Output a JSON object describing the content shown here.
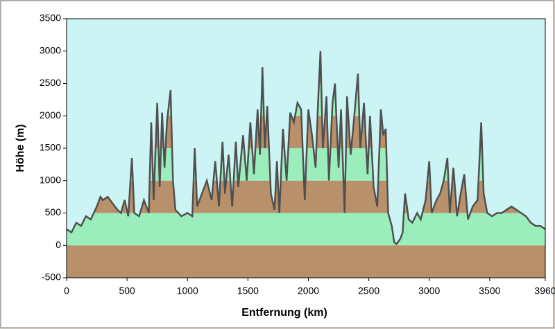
{
  "chart_data": {
    "type": "area",
    "xlabel": "Entfernung  (km)",
    "ylabel": "Höhe (m)",
    "x": [
      0,
      40,
      80,
      120,
      160,
      200,
      250,
      280,
      300,
      340,
      380,
      420,
      450,
      480,
      510,
      540,
      560,
      600,
      640,
      680,
      700,
      720,
      750,
      770,
      790,
      810,
      830,
      860,
      880,
      900,
      950,
      1000,
      1040,
      1060,
      1080,
      1120,
      1160,
      1200,
      1230,
      1260,
      1290,
      1310,
      1340,
      1370,
      1400,
      1420,
      1460,
      1490,
      1520,
      1550,
      1580,
      1600,
      1620,
      1640,
      1660,
      1690,
      1720,
      1740,
      1760,
      1790,
      1820,
      1850,
      1880,
      1910,
      1940,
      1970,
      2000,
      2030,
      2060,
      2080,
      2100,
      2120,
      2150,
      2170,
      2200,
      2220,
      2250,
      2270,
      2300,
      2320,
      2350,
      2380,
      2410,
      2430,
      2460,
      2490,
      2510,
      2540,
      2570,
      2600,
      2620,
      2640,
      2660,
      2690,
      2710,
      2730,
      2760,
      2780,
      2800,
      2830,
      2860,
      2900,
      2930,
      2970,
      3000,
      3020,
      3060,
      3090,
      3120,
      3150,
      3170,
      3200,
      3230,
      3260,
      3290,
      3320,
      3360,
      3400,
      3430,
      3450,
      3480,
      3520,
      3560,
      3600,
      3640,
      3680,
      3720,
      3760,
      3800,
      3840,
      3880,
      3920,
      3960
    ],
    "values": [
      250,
      200,
      350,
      300,
      450,
      400,
      600,
      750,
      700,
      750,
      650,
      550,
      500,
      700,
      450,
      1350,
      500,
      450,
      700,
      500,
      1900,
      700,
      2200,
      900,
      2050,
      1200,
      1900,
      2400,
      1000,
      550,
      450,
      500,
      450,
      1500,
      600,
      800,
      1000,
      700,
      1300,
      600,
      1600,
      800,
      1400,
      600,
      1600,
      900,
      1700,
      1000,
      1900,
      1100,
      2100,
      1400,
      2750,
      1500,
      2150,
      800,
      550,
      1300,
      500,
      1800,
      1000,
      2050,
      1900,
      2200,
      2100,
      700,
      2100,
      1700,
      1200,
      2200,
      3000,
      1500,
      2300,
      1000,
      2200,
      2500,
      1200,
      2100,
      500,
      2300,
      1400,
      2000,
      2650,
      1500,
      2200,
      1100,
      2000,
      900,
      600,
      2100,
      1700,
      1800,
      500,
      300,
      50,
      20,
      100,
      200,
      800,
      400,
      350,
      500,
      400,
      700,
      1300,
      500,
      700,
      800,
      1000,
      1350,
      500,
      1200,
      450,
      800,
      1100,
      400,
      600,
      700,
      1900,
      800,
      500,
      450,
      500,
      500,
      550,
      600,
      550,
      500,
      450,
      350,
      300,
      300,
      250
    ],
    "line_color": "#505050",
    "sky_color": "#cdf4f4",
    "fill_colors": [
      "#b8916a",
      "#9beebb"
    ],
    "xlim": [
      0,
      3960
    ],
    "xticks": [
      0,
      500,
      1000,
      1500,
      2000,
      2500,
      3000,
      3500,
      3960
    ],
    "ylim": [
      -500,
      3500
    ],
    "yticks": [
      -500,
      0,
      500,
      1000,
      1500,
      2000,
      2500,
      3000,
      3500
    ]
  }
}
